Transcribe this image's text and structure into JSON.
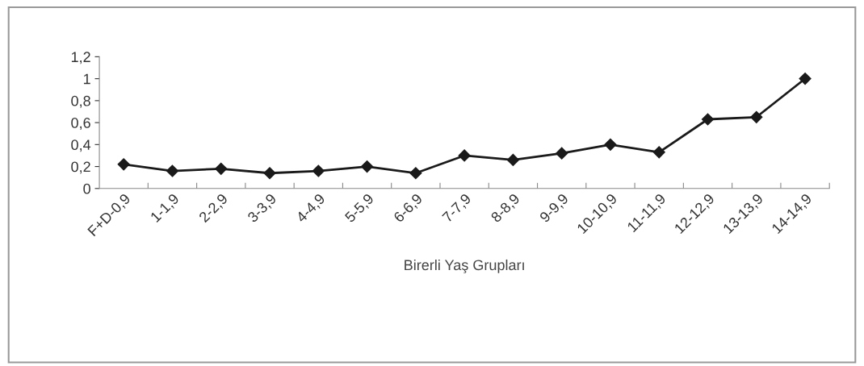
{
  "chart_data": {
    "type": "line",
    "xlabel": "Birerli Yaş Grupları",
    "categories": [
      "F+D-0,9",
      "1-1,9",
      "2-2,9",
      "3-3,9",
      "4-4,9",
      "5-5,9",
      "6-6,9",
      "7-7,9",
      "8-8,9",
      "9-9,9",
      "10-10,9",
      "11-11,9",
      "12-12,9",
      "13-13,9",
      "14-14,9"
    ],
    "series": [
      {
        "color": "#1a1a1a",
        "values": [
          0.22,
          0.16,
          0.18,
          0.14,
          0.16,
          0.2,
          0.14,
          0.3,
          0.26,
          0.32,
          0.4,
          0.33,
          0.63,
          0.65,
          1.0
        ]
      }
    ],
    "ylim": [
      0,
      1.2
    ],
    "yticks": [
      {
        "value": 0,
        "label": "0"
      },
      {
        "value": 0.2,
        "label": "0,2"
      },
      {
        "value": 0.4,
        "label": "0,4"
      },
      {
        "value": 0.6,
        "label": "0,6"
      },
      {
        "value": 0.8,
        "label": "0,8"
      },
      {
        "value": 1,
        "label": "1"
      },
      {
        "value": 1.2,
        "label": "1,2"
      }
    ],
    "marker": "diamond",
    "line_style": "solid",
    "grid": false,
    "legend": false
  }
}
